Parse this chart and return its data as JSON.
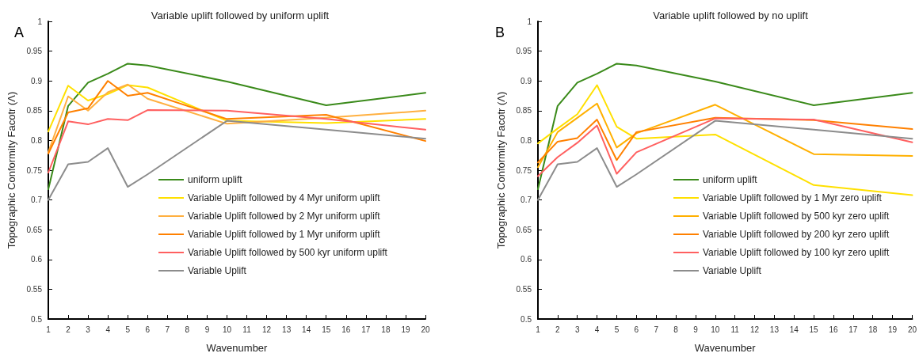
{
  "chart_data": [
    {
      "type": "line",
      "title": "Variable uplift followed by uniform uplift",
      "xlabel": "Wavenumber",
      "ylabel": "Topographic Conformity Facotr (Λ)",
      "annotations": [
        "A"
      ],
      "x": [
        1,
        2,
        3,
        4,
        5,
        6,
        10,
        15,
        20
      ],
      "series": [
        {
          "name": "uniform uplift",
          "color": "#3a8a1a",
          "values": [
            0.718,
            0.858,
            0.897,
            0.912,
            0.929,
            0.926,
            0.899,
            0.859,
            0.88
          ]
        },
        {
          "name": "Variable Uplift followed by 4 Myr uniform uplift",
          "color": "#ffe000",
          "values": [
            0.815,
            0.892,
            0.867,
            0.878,
            0.893,
            0.889,
            0.833,
            0.829,
            0.836
          ]
        },
        {
          "name": "Variable Uplift followed by 2 Myr uniform uplift",
          "color": "#ffb040",
          "values": [
            0.78,
            0.874,
            0.85,
            0.881,
            0.894,
            0.87,
            0.828,
            0.838,
            0.85
          ]
        },
        {
          "name": "Variable Uplift followed by 1 Myr uniform uplift",
          "color": "#ff8000",
          "values": [
            0.778,
            0.847,
            0.854,
            0.9,
            0.875,
            0.88,
            0.836,
            0.843,
            0.799
          ]
        },
        {
          "name": "Variable Uplift followed by 500 kyr uniform uplift",
          "color": "#ff6060",
          "values": [
            0.746,
            0.832,
            0.827,
            0.836,
            0.834,
            0.851,
            0.85,
            0.836,
            0.818
          ]
        },
        {
          "name": "Variable Uplift",
          "color": "#8c8c8c",
          "values": [
            0.7,
            0.76,
            0.764,
            0.787,
            0.722,
            0.743,
            0.833,
            0.818,
            0.803
          ]
        }
      ],
      "xlim": [
        1,
        20
      ],
      "xticks": [
        1,
        2,
        3,
        4,
        5,
        6,
        7,
        8,
        9,
        10,
        11,
        12,
        13,
        14,
        15,
        16,
        17,
        18,
        19,
        20
      ],
      "ylim": [
        0.5,
        1
      ],
      "yticks": [
        0.5,
        0.55,
        0.6,
        0.65,
        0.7,
        0.75,
        0.8,
        0.85,
        0.9,
        0.95,
        1
      ],
      "grid": false,
      "legend": "bottom right",
      "marker": "none",
      "line_style": "solid"
    },
    {
      "type": "line",
      "title": "Variable uplift followed by no uplift",
      "xlabel": "Wavenumber",
      "ylabel": "Topographic Conformity Facotr (Λ)",
      "annotations": [
        "B"
      ],
      "x": [
        1,
        2,
        3,
        4,
        5,
        6,
        10,
        15,
        20
      ],
      "series": [
        {
          "name": "uniform uplift",
          "color": "#3a8a1a",
          "values": [
            0.718,
            0.858,
            0.897,
            0.912,
            0.929,
            0.926,
            0.899,
            0.859,
            0.88
          ]
        },
        {
          "name": "Variable Uplift followed by 1 Myr zero uplift",
          "color": "#ffe000",
          "values": [
            0.795,
            0.82,
            0.844,
            0.893,
            0.823,
            0.803,
            0.81,
            0.725,
            0.708
          ]
        },
        {
          "name": "Variable Uplift followed by 500 kyr zero uplift",
          "color": "#ffb000",
          "values": [
            0.755,
            0.814,
            0.838,
            0.862,
            0.788,
            0.812,
            0.86,
            0.777,
            0.774
          ]
        },
        {
          "name": "Variable Uplift followed by 200 kyr zero uplift",
          "color": "#ff8000",
          "values": [
            0.763,
            0.798,
            0.804,
            0.835,
            0.767,
            0.814,
            0.838,
            0.834,
            0.819
          ]
        },
        {
          "name": "Variable Uplift followed by 100 kyr zero uplift",
          "color": "#ff6060",
          "values": [
            0.74,
            0.772,
            0.796,
            0.825,
            0.744,
            0.78,
            0.837,
            0.835,
            0.797
          ]
        },
        {
          "name": "Variable Uplift",
          "color": "#8c8c8c",
          "values": [
            0.7,
            0.76,
            0.764,
            0.787,
            0.722,
            0.743,
            0.833,
            0.818,
            0.803
          ]
        }
      ],
      "xlim": [
        1,
        20
      ],
      "xticks": [
        1,
        2,
        3,
        4,
        5,
        6,
        7,
        8,
        9,
        10,
        11,
        12,
        13,
        14,
        15,
        16,
        17,
        18,
        19,
        20
      ],
      "ylim": [
        0.5,
        1
      ],
      "yticks": [
        0.5,
        0.55,
        0.6,
        0.65,
        0.7,
        0.75,
        0.8,
        0.85,
        0.9,
        0.95,
        1
      ],
      "grid": false,
      "legend": "bottom right",
      "marker": "none",
      "line_style": "solid"
    }
  ]
}
